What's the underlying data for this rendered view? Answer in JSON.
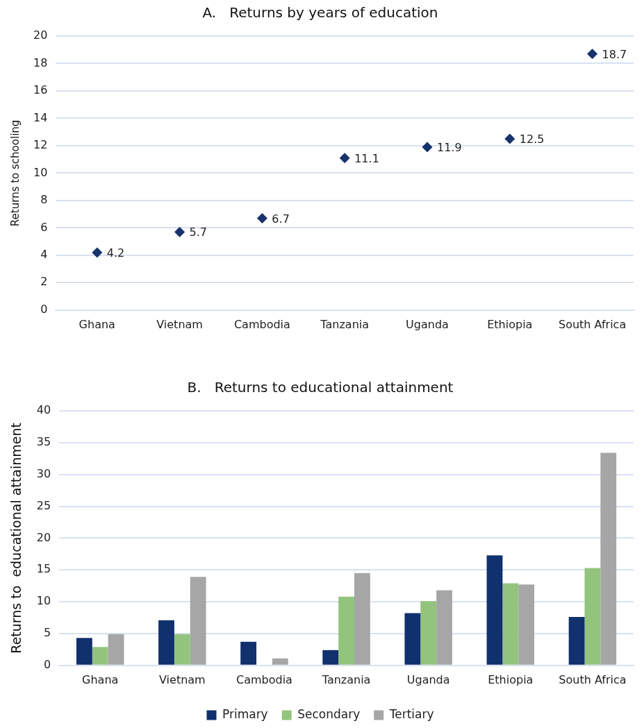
{
  "chart_data": [
    {
      "type": "scatter",
      "title": "A.   Returns by years of education",
      "ylabel": "Returns to schooling",
      "categories": [
        "Ghana",
        "Vietnam",
        "Cambodia",
        "Tanzania",
        "Uganda",
        "Ethiopia",
        "South Africa"
      ],
      "series": [
        {
          "color": "#17336b",
          "values": [
            4.2,
            5.7,
            6.7,
            11.1,
            11.9,
            12.5,
            18.7
          ]
        }
      ],
      "ylim": [
        0,
        20
      ],
      "yticks": [
        0,
        2,
        4,
        6,
        8,
        10,
        12,
        14,
        16,
        18,
        20
      ],
      "grid": "y",
      "marker": "diamond",
      "data_labels": true,
      "legend": false
    },
    {
      "type": "bar",
      "title": "B.   Returns to educational attainment",
      "ylabel": "Returns to  educational attainment",
      "categories": [
        "Ghana",
        "Vietnam",
        "Cambodia",
        "Tanzania",
        "Uganda",
        "Ethiopia",
        "South Africa"
      ],
      "series": [
        {
          "name": "Primary",
          "color": "#10306e",
          "values": [
            4.3,
            7.1,
            3.7,
            2.4,
            8.2,
            17.3,
            7.6
          ]
        },
        {
          "name": "Secondary",
          "color": "#93c47d",
          "values": [
            2.9,
            4.9,
            null,
            10.8,
            10.1,
            12.9,
            15.3
          ]
        },
        {
          "name": "Tertiary",
          "color": "#a6a6a6",
          "values": [
            4.9,
            13.9,
            1.1,
            14.5,
            11.8,
            12.7,
            33.4
          ]
        }
      ],
      "ylim": [
        0,
        40
      ],
      "yticks": [
        0,
        5,
        10,
        15,
        20,
        25,
        30,
        35,
        40
      ],
      "grid": "y",
      "legend": "bottom"
    }
  ]
}
